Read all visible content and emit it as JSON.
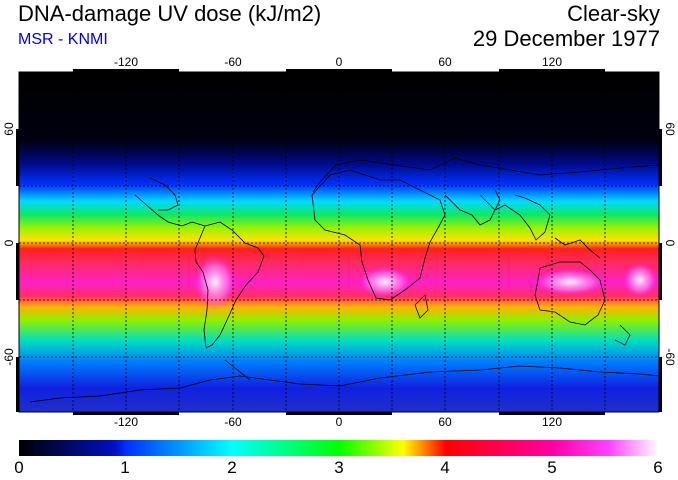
{
  "header": {
    "title": "DNA-damage UV dose (kJ/m2)",
    "subtitle": "MSR - KNMI",
    "condition": "Clear-sky",
    "date": "29 December 1977"
  },
  "map": {
    "lon_ticks_top": [
      "-120",
      "-60",
      "0",
      "60",
      "120"
    ],
    "lon_ticks_bottom": [
      "-120",
      "-60",
      "0",
      "60",
      "120"
    ],
    "lat_ticks_left": [
      "60",
      "0",
      "-60"
    ],
    "lat_ticks_right": [
      "60",
      "0",
      "-60"
    ]
  },
  "colorbar": {
    "labels": [
      "0",
      "1",
      "2",
      "3",
      "4",
      "5",
      "6"
    ],
    "colors": [
      "#000000",
      "#0000ff",
      "#00ffff",
      "#00ff00",
      "#ffff00",
      "#ff0000",
      "#ff00ff",
      "#ffffff"
    ]
  }
}
